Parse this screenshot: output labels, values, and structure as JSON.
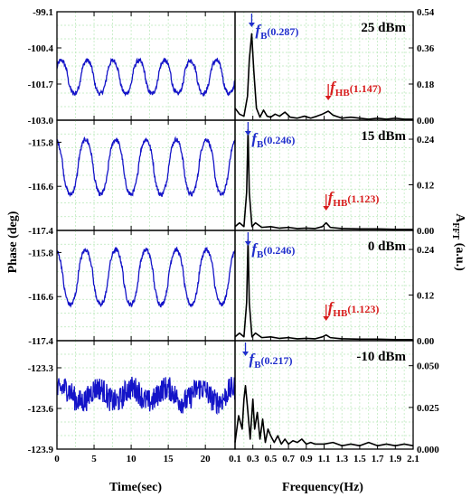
{
  "labels": {
    "left_ylabel": "Phase (deg)",
    "right_ylabel_main": "A",
    "right_ylabel_sub": "FFT",
    "right_ylabel_unit": " (a.u.)",
    "left_xlabel": "Time(sec)",
    "right_xlabel": "Frequency(Hz)"
  },
  "colors": {
    "phase": "#1414c8",
    "fft": "#000000",
    "fB": "#1f2ecc",
    "fHB": "#d81c1c",
    "grid": "#b8e8b8"
  },
  "chart_data": [
    {
      "type": "line",
      "name": "phase-25dBm",
      "x_range": [
        0,
        24
      ],
      "xticks": [
        0,
        5,
        10,
        15,
        20
      ],
      "ylim": [
        -103.0,
        -99.1
      ],
      "yticks": [
        -99.1,
        -100.4,
        -101.7,
        -103.0
      ],
      "yticklabels": [
        "-99.1",
        "-100.4",
        "-101.7",
        "-103.0"
      ],
      "signal": {
        "mean": -101.45,
        "amp": 0.6,
        "period": 3.48,
        "phase": 0.5,
        "noise": 0.08,
        "points": 480
      }
    },
    {
      "type": "line",
      "name": "phase-15dBm",
      "x_range": [
        0,
        24
      ],
      "xticks": [
        0,
        5,
        10,
        15,
        20
      ],
      "ylim": [
        -117.4,
        -115.4
      ],
      "yticks": [
        -115.8,
        -116.6,
        -117.4
      ],
      "yticklabels": [
        "-115.8",
        "-116.6",
        "-117.4"
      ],
      "signal": {
        "mean": -116.25,
        "amp": 0.5,
        "period": 4.07,
        "phase": 1.9,
        "noise": 0.04,
        "points": 480
      }
    },
    {
      "type": "line",
      "name": "phase-0dBm",
      "x_range": [
        0,
        24
      ],
      "xticks": [
        0,
        5,
        10,
        15,
        20
      ],
      "ylim": [
        -117.4,
        -115.4
      ],
      "yticks": [
        -115.8,
        -116.6,
        -117.4
      ],
      "yticklabels": [
        "-115.8",
        "-116.6",
        "-117.4"
      ],
      "signal": {
        "mean": -116.25,
        "amp": 0.5,
        "period": 4.07,
        "phase": 1.9,
        "noise": 0.04,
        "points": 480
      }
    },
    {
      "type": "line",
      "name": "phase-minus10dBm",
      "x_range": [
        0,
        24
      ],
      "xticks": [
        0,
        5,
        10,
        15,
        20
      ],
      "xticklabels": [
        "0",
        "5",
        "10",
        "15",
        "20"
      ],
      "ylim": [
        -123.9,
        -123.1
      ],
      "yticks": [
        -123.3,
        -123.6,
        -123.9
      ],
      "yticklabels": [
        "-123.3",
        "-123.6",
        "-123.9"
      ],
      "signal": {
        "mean": -123.5,
        "amp": 0.05,
        "period": 4.6,
        "phase": 0.3,
        "noise": 0.09,
        "points": 480
      }
    },
    {
      "type": "line",
      "name": "fft-25dBm",
      "power_label": "25 dBm",
      "xlim": [
        0.1,
        2.1
      ],
      "ylim": [
        0,
        0.54
      ],
      "yticks": [
        0,
        0.18,
        0.36,
        0.54
      ],
      "yticklabels": [
        "0.00",
        "0.18",
        "0.36",
        "0.54"
      ],
      "x": [
        0.1,
        0.15,
        0.2,
        0.24,
        0.26,
        0.287,
        0.31,
        0.34,
        0.38,
        0.42,
        0.46,
        0.5,
        0.55,
        0.6,
        0.66,
        0.72,
        0.8,
        0.88,
        0.95,
        1.02,
        1.08,
        1.147,
        1.2,
        1.3,
        1.4,
        1.5,
        1.6,
        1.7,
        1.8,
        1.9,
        2.0,
        2.1
      ],
      "y": [
        0.06,
        0.03,
        0.02,
        0.12,
        0.3,
        0.43,
        0.25,
        0.06,
        0.015,
        0.05,
        0.02,
        0.015,
        0.03,
        0.02,
        0.04,
        0.015,
        0.01,
        0.02,
        0.01,
        0.02,
        0.03,
        0.045,
        0.025,
        0.01,
        0.015,
        0.01,
        0.005,
        0.01,
        0.005,
        0.01,
        0.005,
        0.005
      ],
      "peaks": [
        {
          "kind": "fB",
          "sub": "B",
          "value": "(0.287)",
          "x": 0.287
        },
        {
          "kind": "fHB",
          "sub": "HB",
          "value": "(1.147)",
          "x": 1.147
        }
      ]
    },
    {
      "type": "line",
      "name": "fft-15dBm",
      "power_label": "15 dBm",
      "xlim": [
        0.1,
        2.1
      ],
      "ylim": [
        0,
        0.29
      ],
      "yticks": [
        0,
        0.12,
        0.24
      ],
      "yticklabels": [
        "0.00",
        "0.12",
        "0.24"
      ],
      "x": [
        0.1,
        0.15,
        0.2,
        0.23,
        0.246,
        0.26,
        0.29,
        0.33,
        0.4,
        0.5,
        0.6,
        0.7,
        0.8,
        0.9,
        1.0,
        1.08,
        1.123,
        1.17,
        1.3,
        1.5,
        1.7,
        1.9,
        2.1
      ],
      "y": [
        0.01,
        0.02,
        0.01,
        0.1,
        0.265,
        0.1,
        0.01,
        0.02,
        0.008,
        0.01,
        0.006,
        0.008,
        0.005,
        0.006,
        0.005,
        0.01,
        0.02,
        0.008,
        0.005,
        0.004,
        0.004,
        0.003,
        0.003
      ],
      "peaks": [
        {
          "kind": "fB",
          "sub": "B",
          "value": "(0.246)",
          "x": 0.246
        },
        {
          "kind": "fHB",
          "sub": "HB",
          "value": "(1.123)",
          "x": 1.123
        }
      ]
    },
    {
      "type": "line",
      "name": "fft-0dBm",
      "power_label": "0 dBm",
      "xlim": [
        0.1,
        2.1
      ],
      "ylim": [
        0,
        0.29
      ],
      "yticks": [
        0,
        0.12,
        0.24
      ],
      "yticklabels": [
        "0.00",
        "0.12",
        "0.24"
      ],
      "x": [
        0.1,
        0.15,
        0.2,
        0.23,
        0.246,
        0.26,
        0.29,
        0.33,
        0.4,
        0.5,
        0.6,
        0.7,
        0.8,
        0.9,
        1.0,
        1.08,
        1.123,
        1.17,
        1.3,
        1.5,
        1.7,
        1.9,
        2.1
      ],
      "y": [
        0.01,
        0.02,
        0.01,
        0.1,
        0.265,
        0.1,
        0.01,
        0.02,
        0.008,
        0.01,
        0.006,
        0.008,
        0.005,
        0.006,
        0.005,
        0.01,
        0.015,
        0.008,
        0.005,
        0.004,
        0.004,
        0.003,
        0.003
      ],
      "peaks": [
        {
          "kind": "fB",
          "sub": "B",
          "value": "(0.246)",
          "x": 0.246
        },
        {
          "kind": "fHB",
          "sub": "HB",
          "value": "(1.123)",
          "x": 1.123
        }
      ]
    },
    {
      "type": "line",
      "name": "fft-minus10dBm",
      "power_label": "-10 dBm",
      "xlim": [
        0.1,
        2.1
      ],
      "ylim": [
        0,
        0.065
      ],
      "yticks": [
        0,
        0.025,
        0.05
      ],
      "yticklabels": [
        "0.000",
        "0.025",
        "0.050"
      ],
      "xticks": [
        0.1,
        0.3,
        0.5,
        0.7,
        0.9,
        1.1,
        1.3,
        1.5,
        1.7,
        1.9,
        2.1
      ],
      "xticklabels": [
        "0.1",
        "0.3",
        "0.5",
        "0.7",
        "0.9",
        "1.1",
        "1.3",
        "1.5",
        "1.7",
        "1.9",
        "2.1"
      ],
      "x": [
        0.1,
        0.14,
        0.18,
        0.2,
        0.217,
        0.24,
        0.27,
        0.3,
        0.32,
        0.35,
        0.38,
        0.41,
        0.44,
        0.47,
        0.5,
        0.54,
        0.58,
        0.62,
        0.66,
        0.7,
        0.75,
        0.8,
        0.85,
        0.9,
        0.95,
        1.0,
        1.1,
        1.2,
        1.3,
        1.4,
        1.5,
        1.6,
        1.7,
        1.8,
        1.9,
        2.0,
        2.1
      ],
      "y": [
        0.004,
        0.02,
        0.012,
        0.03,
        0.038,
        0.025,
        0.006,
        0.03,
        0.012,
        0.022,
        0.006,
        0.018,
        0.004,
        0.012,
        0.008,
        0.004,
        0.008,
        0.003,
        0.006,
        0.003,
        0.005,
        0.004,
        0.006,
        0.003,
        0.004,
        0.003,
        0.003,
        0.004,
        0.002,
        0.003,
        0.002,
        0.004,
        0.002,
        0.003,
        0.002,
        0.003,
        0.002
      ],
      "peaks": [
        {
          "kind": "fB",
          "sub": "B",
          "value": "(0.217)",
          "x": 0.217
        }
      ]
    }
  ]
}
